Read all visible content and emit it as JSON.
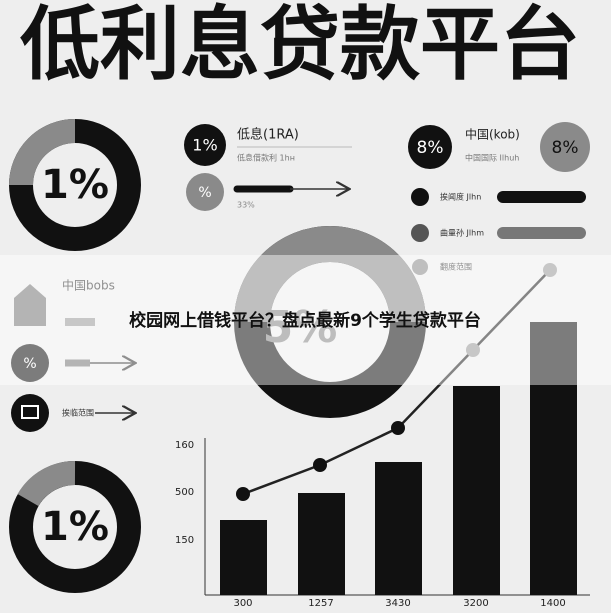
{
  "header": {
    "title": "低利息贷款平台"
  },
  "left_donut_top": {
    "label": "1%"
  },
  "stats_left": [
    {
      "badge": "1%",
      "label": "低息(1RA)",
      "sub": "低息借款利 1hн"
    },
    {
      "badge": "%",
      "sub": "33%"
    }
  ],
  "stats_right": {
    "badge": "8%",
    "label": "中国(kob)",
    "sub": "中国国际 Ilhuh",
    "side_badge": "8%"
  },
  "legend_right": [
    "挨闻度 Jlhn",
    "曲量孙 Jlhm",
    "翻度范围"
  ],
  "center_donut": {
    "label": "5%"
  },
  "banner": {
    "text": "校园网上借钱平台？盘点最新9个学生贷款平台"
  },
  "left_list": {
    "label": "中国bobs",
    "badge": "%",
    "item": "挨临范围"
  },
  "left_donut_bottom": {
    "label": "1%"
  },
  "bar_chart": {
    "y_labels": [
      "160",
      "500",
      "150"
    ],
    "x_labels": [
      "300",
      "1257",
      "3430",
      "3200",
      "1400"
    ]
  }
}
